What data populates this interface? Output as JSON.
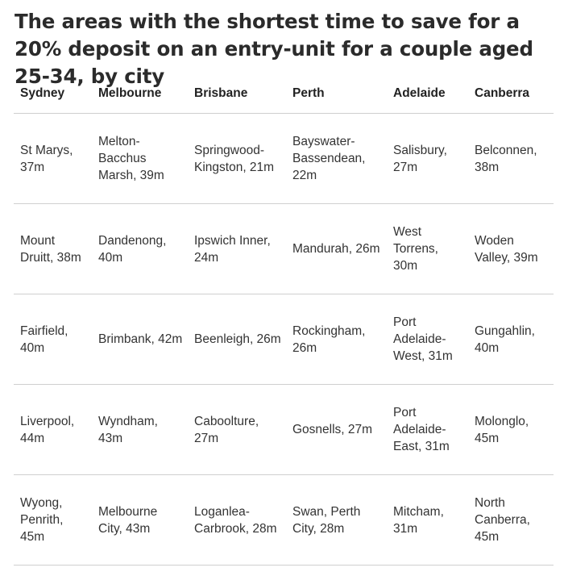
{
  "title": "The areas with the shortest time to save for a 20% deposit on an entry-unit for a couple aged 25-34, by city",
  "table": {
    "headers": [
      "Sydney",
      "Melbourne",
      "Brisbane",
      "Perth",
      "Adelaide",
      "Canberra"
    ],
    "rows": [
      [
        "St Marys, 37m",
        "Melton-Bacchus Marsh, 39m",
        "Springwood-Kingston, 21m",
        "Bayswater-Bassendean, 22m",
        "Salisbury, 27m",
        "Belconnen, 38m"
      ],
      [
        "Mount Druitt, 38m",
        "Dandenong, 40m",
        "Ipswich Inner, 24m",
        "Mandurah, 26m",
        "West Torrens, 30m",
        "Woden Valley, 39m"
      ],
      [
        "Fairfield, 40m",
        "Brimbank, 42m",
        "Beenleigh, 26m",
        "Rockingham, 26m",
        "Port Adelaide-West, 31m",
        "Gungahlin, 40m"
      ],
      [
        "Liverpool, 44m",
        "Wyndham, 43m",
        "Caboolture, 27m",
        "Gosnells, 27m",
        "Port Adelaide-East, 31m",
        "Molonglo, 45m"
      ],
      [
        "Wyong, Penrith, 45m",
        "Melbourne City, 43m",
        "Loganlea-Carbrook, 28m",
        "Swan, Perth City, 28m",
        "Mitcham, 31m",
        "North Canberra, 45m"
      ]
    ]
  }
}
